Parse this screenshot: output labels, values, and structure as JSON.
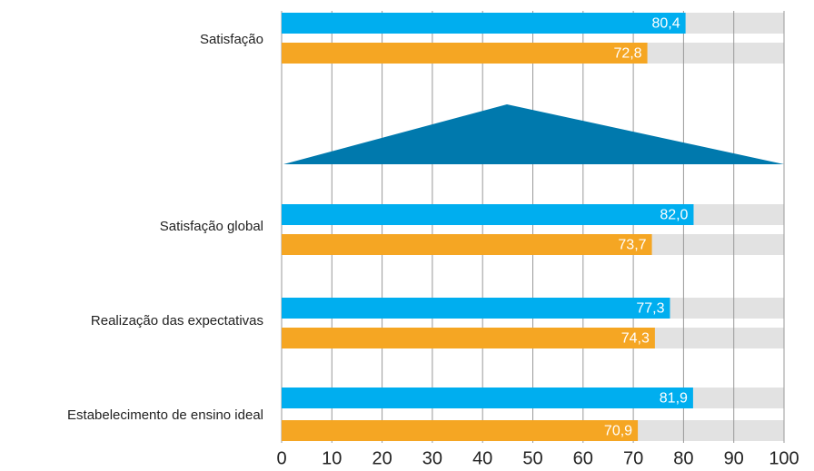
{
  "chart_data": {
    "type": "barh",
    "categories": [
      "Satisfação",
      "Satisfação global",
      "Realização das expectativas",
      "Estabelecimento de ensino ideal"
    ],
    "series": [
      {
        "color": "#00aeef",
        "values": [
          80.4,
          82.0,
          77.3,
          81.9
        ],
        "value_labels": [
          "80,4",
          "82,0",
          "77,3",
          "81,9"
        ]
      },
      {
        "color": "#f5a623",
        "values": [
          72.8,
          73.7,
          74.3,
          70.9
        ],
        "value_labels": [
          "72,8",
          "73,7",
          "74,3",
          "70,9"
        ]
      }
    ],
    "xlim": [
      0,
      100
    ],
    "xticks": [
      0,
      10,
      20,
      30,
      40,
      50,
      60,
      70,
      80,
      90,
      100
    ],
    "grid": true
  }
}
